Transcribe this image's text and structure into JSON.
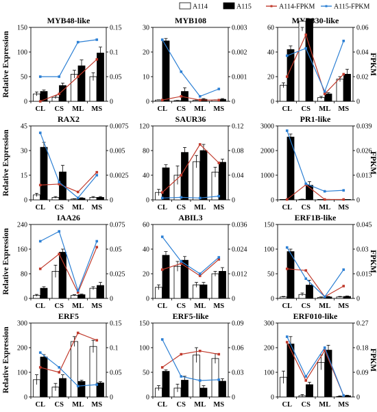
{
  "legend": {
    "items": [
      {
        "key": "a114",
        "label": "A114",
        "kind": "bar",
        "color": "#ffffff"
      },
      {
        "key": "a115",
        "label": "A115",
        "kind": "bar",
        "color": "#000000"
      },
      {
        "key": "a114_fpkm",
        "label": "A114-FPKM",
        "kind": "line",
        "color": "#c0392b"
      },
      {
        "key": "a115_fpkm",
        "label": "A115-FPKM",
        "kind": "line",
        "color": "#2b7fd4"
      }
    ]
  },
  "axis_titles": {
    "left": [
      "Relative Expression",
      "Relative Expression",
      "Relative Expression",
      "Relative Expression"
    ],
    "right": [
      "FPKM",
      "FPKM",
      "FPKM",
      "FPKM"
    ]
  },
  "chart_data": [
    {
      "type": "bar",
      "title": "MYB48-like",
      "categories": [
        "CL",
        "CS",
        "ML",
        "MS"
      ],
      "ylim": [
        0,
        150
      ],
      "yticks": [
        "0",
        "50",
        "100",
        "150"
      ],
      "y2lim": [
        0,
        0.15
      ],
      "y2ticks": [
        "0",
        "0.05",
        "0.1",
        "0.15"
      ],
      "series": [
        {
          "name": "A114",
          "values": [
            15,
            8,
            55,
            50
          ],
          "errors": [
            4,
            3,
            8,
            8
          ]
        },
        {
          "name": "A115",
          "values": [
            20,
            32,
            72,
            98
          ],
          "errors": [
            3,
            5,
            12,
            12
          ]
        },
        {
          "name": "A114-FPKM",
          "values": [
            0,
            0.015,
            0.05,
            0.085
          ]
        },
        {
          "name": "A115-FPKM",
          "values": [
            0.05,
            0.05,
            0.12,
            0.125
          ]
        }
      ]
    },
    {
      "type": "bar",
      "title": "MYB108",
      "categories": [
        "CL",
        "CS",
        "ML",
        "MS"
      ],
      "ylim": [
        0,
        30
      ],
      "yticks": [
        "0",
        "10",
        "20",
        "30"
      ],
      "y2lim": [
        0,
        0.003
      ],
      "y2ticks": [
        "0",
        "0.001",
        "0.002",
        "0.003"
      ],
      "series": [
        {
          "name": "A114",
          "values": [
            0.5,
            0.3,
            0.4,
            0.5
          ],
          "errors": [
            0.1,
            0.1,
            0.1,
            0.1
          ]
        },
        {
          "name": "A115",
          "values": [
            24.5,
            4,
            0.8,
            0.8
          ],
          "errors": [
            1,
            1.5,
            0.3,
            0.3
          ]
        },
        {
          "name": "A114-FPKM",
          "values": [
            5e-05,
            0.0002,
            5e-05,
            5e-05
          ]
        },
        {
          "name": "A115-FPKM",
          "values": [
            0.0025,
            0.0012,
            0.0002,
            0.0005
          ]
        }
      ]
    },
    {
      "type": "bar",
      "title": "MYB330-like",
      "categories": [
        "CL",
        "CS",
        "ML",
        "MS"
      ],
      "ylim": [
        0,
        60
      ],
      "yticks": [
        "0",
        "20",
        "40",
        "60"
      ],
      "y2lim": [
        0,
        0.06
      ],
      "y2ticks": [
        "0",
        "0.02",
        "0.04",
        "0.06"
      ],
      "series": [
        {
          "name": "A114",
          "values": [
            13,
            65,
            3,
            18
          ],
          "errors": [
            2,
            8,
            1,
            2
          ]
        },
        {
          "name": "A115",
          "values": [
            42,
            67,
            6,
            22
          ],
          "errors": [
            3,
            12,
            1,
            4
          ]
        },
        {
          "name": "A114-FPKM",
          "values": [
            0.02,
            0.054,
            0.006,
            0.022
          ]
        },
        {
          "name": "A115-FPKM",
          "values": [
            0.037,
            0.043,
            0.008,
            0.049
          ]
        }
      ]
    },
    {
      "type": "bar",
      "title": "RAX2",
      "categories": [
        "CL",
        "CS",
        "ML",
        "MS"
      ],
      "ylim": [
        0,
        45
      ],
      "yticks": [
        "0",
        "15",
        "30",
        "45"
      ],
      "y2lim": [
        0,
        0.0075
      ],
      "y2ticks": [
        "0",
        "0.0025",
        "0.005",
        "0.0075"
      ],
      "series": [
        {
          "name": "A114",
          "values": [
            3,
            1.5,
            0.5,
            1.5
          ],
          "errors": [
            1,
            0.5,
            0.2,
            0.5
          ]
        },
        {
          "name": "A115",
          "values": [
            32,
            17,
            1,
            1.5
          ],
          "errors": [
            3,
            4,
            0.3,
            0.5
          ]
        },
        {
          "name": "A114-FPKM",
          "values": [
            0.0015,
            0.0016,
            0.0008,
            0.0028
          ]
        },
        {
          "name": "A115-FPKM",
          "values": [
            0.0068,
            0.0018,
            0.0002,
            0.0025
          ]
        }
      ]
    },
    {
      "type": "bar",
      "title": "SAUR36",
      "categories": [
        "CL",
        "CS",
        "ML",
        "MS"
      ],
      "ylim": [
        0,
        120
      ],
      "yticks": [
        "0",
        "40",
        "80",
        "120"
      ],
      "y2lim": [
        0,
        0.12
      ],
      "y2ticks": [
        "0",
        "0.04",
        "0.08",
        "0.12"
      ],
      "series": [
        {
          "name": "A114",
          "values": [
            12,
            40,
            62,
            45
          ],
          "errors": [
            5,
            15,
            10,
            8
          ]
        },
        {
          "name": "A115",
          "values": [
            52,
            77,
            80,
            61
          ],
          "errors": [
            5,
            8,
            10,
            5
          ]
        },
        {
          "name": "A114-FPKM",
          "values": [
            0.012,
            0.04,
            0.09,
            0.06
          ]
        },
        {
          "name": "A115-FPKM",
          "values": [
            0.003,
            0.004,
            0.003,
            0.006
          ]
        }
      ]
    },
    {
      "type": "bar",
      "title": "PR1-like",
      "categories": [
        "CL",
        "CS",
        "ML",
        "MS"
      ],
      "ylim": [
        0,
        3000
      ],
      "yticks": [
        "0",
        "1000",
        "2000",
        "3000"
      ],
      "y2lim": [
        0,
        0.039
      ],
      "y2ticks": [
        "0",
        "0.013",
        "0.026",
        "0.039"
      ],
      "series": [
        {
          "name": "A114",
          "values": [
            10,
            20,
            5,
            5
          ],
          "errors": [
            5,
            10,
            2,
            2
          ]
        },
        {
          "name": "A115",
          "values": [
            2550,
            590,
            15,
            10
          ],
          "errors": [
            120,
            150,
            5,
            5
          ]
        },
        {
          "name": "A114-FPKM",
          "values": [
            0.0002,
            0.008,
            0.0002,
            0.0002
          ]
        },
        {
          "name": "A115-FPKM",
          "values": [
            0.0365,
            0.0085,
            0.0045,
            0.005
          ]
        }
      ]
    },
    {
      "type": "bar",
      "title": "IAA26",
      "categories": [
        "CL",
        "CS",
        "ML",
        "MS"
      ],
      "ylim": [
        0,
        240
      ],
      "yticks": [
        "0",
        "80",
        "160",
        "240"
      ],
      "y2lim": [
        0,
        0.075
      ],
      "y2ticks": [
        "0",
        "0.025",
        "0.05",
        "0.075"
      ],
      "series": [
        {
          "name": "A114",
          "values": [
            10,
            88,
            10,
            33
          ],
          "errors": [
            3,
            20,
            2,
            5
          ]
        },
        {
          "name": "A115",
          "values": [
            33,
            150,
            12,
            42
          ],
          "errors": [
            5,
            10,
            2,
            10
          ]
        },
        {
          "name": "A114-FPKM",
          "values": [
            0.03,
            0.045,
            0.006,
            0.052
          ]
        },
        {
          "name": "A115-FPKM",
          "values": [
            0.058,
            0.068,
            0.008,
            0.058
          ]
        }
      ]
    },
    {
      "type": "bar",
      "title": "ABIL3",
      "categories": [
        "CL",
        "CS",
        "ML",
        "MS"
      ],
      "ylim": [
        0,
        60
      ],
      "yticks": [
        "0",
        "20",
        "40",
        "60"
      ],
      "y2lim": [
        0,
        0.036
      ],
      "y2ticks": [
        "0",
        "0.012",
        "0.024",
        "0.036"
      ],
      "series": [
        {
          "name": "A114",
          "values": [
            9,
            26,
            11,
            20
          ],
          "errors": [
            2,
            4,
            2,
            2
          ]
        },
        {
          "name": "A115",
          "values": [
            35,
            31,
            11,
            22
          ],
          "errors": [
            3,
            3,
            2,
            3
          ]
        },
        {
          "name": "A114-FPKM",
          "values": [
            0.014,
            0.017,
            0.011,
            0.019
          ]
        },
        {
          "name": "A115-FPKM",
          "values": [
            0.03,
            0.018,
            0.012,
            0.02
          ]
        }
      ]
    },
    {
      "type": "bar",
      "title": "ERF1B-like",
      "categories": [
        "CL",
        "CS",
        "ML",
        "MS"
      ],
      "ylim": [
        0,
        150
      ],
      "yticks": [
        "0",
        "50",
        "100",
        "150"
      ],
      "y2lim": [
        0,
        0.045
      ],
      "y2ticks": [
        "0",
        "0.015",
        "0.03",
        "0.045"
      ],
      "series": [
        {
          "name": "A114",
          "values": [
            3,
            8,
            2,
            3
          ],
          "errors": [
            1,
            3,
            1,
            1
          ]
        },
        {
          "name": "A115",
          "values": [
            95,
            27,
            3,
            4
          ],
          "errors": [
            5,
            10,
            1,
            1
          ]
        },
        {
          "name": "A114-FPKM",
          "values": [
            0.018,
            0.017,
            0.001,
            0.0075
          ]
        },
        {
          "name": "A115-FPKM",
          "values": [
            0.031,
            0.012,
            0.001,
            0.0175
          ]
        }
      ]
    },
    {
      "type": "bar",
      "title": "ERF5",
      "categories": [
        "CL",
        "CS",
        "ML",
        "MS"
      ],
      "ylim": [
        0,
        300
      ],
      "yticks": [
        "0",
        "100",
        "200",
        "300"
      ],
      "y2lim": [
        0,
        0.15
      ],
      "y2ticks": [
        "0",
        "0.05",
        "0.1",
        "0.15"
      ],
      "series": [
        {
          "name": "A114",
          "values": [
            70,
            40,
            225,
            205
          ],
          "errors": [
            20,
            15,
            20,
            25
          ]
        },
        {
          "name": "A115",
          "values": [
            162,
            75,
            63,
            57
          ],
          "errors": [
            10,
            15,
            5,
            5
          ]
        },
        {
          "name": "A114-FPKM",
          "values": [
            0.06,
            0.05,
            0.13,
            0.115
          ]
        },
        {
          "name": "A115-FPKM",
          "values": [
            0.09,
            0.06,
            0.022,
            0.025
          ]
        }
      ]
    },
    {
      "type": "bar",
      "title": "ERF5-like",
      "categories": [
        "CL",
        "CS",
        "ML",
        "MS"
      ],
      "ylim": [
        0,
        150
      ],
      "yticks": [
        "0",
        "50",
        "100",
        "150"
      ],
      "y2lim": [
        0,
        0.09
      ],
      "y2ticks": [
        "0",
        "0.03",
        "0.06",
        "0.09"
      ],
      "series": [
        {
          "name": "A114",
          "values": [
            18,
            18,
            85,
            78
          ],
          "errors": [
            5,
            8,
            15,
            10
          ]
        },
        {
          "name": "A115",
          "values": [
            52,
            34,
            18,
            32
          ],
          "errors": [
            3,
            8,
            5,
            5
          ]
        },
        {
          "name": "A114-FPKM",
          "values": [
            0.036,
            0.052,
            0.056,
            0.052
          ]
        },
        {
          "name": "A115-FPKM",
          "values": [
            0.07,
            0.025,
            0.02,
            0.021
          ]
        }
      ]
    },
    {
      "type": "bar",
      "title": "ERF010-like",
      "categories": [
        "CL",
        "CS",
        "ML",
        "MS"
      ],
      "ylim": [
        0,
        300
      ],
      "yticks": [
        "0",
        "100",
        "200",
        "300"
      ],
      "y2lim": [
        0,
        0.27
      ],
      "y2ticks": [
        "0",
        "0.09",
        "0.18",
        "0.27"
      ],
      "series": [
        {
          "name": "A114",
          "values": [
            80,
            5,
            140,
            2
          ],
          "errors": [
            25,
            5,
            30,
            2
          ]
        },
        {
          "name": "A115",
          "values": [
            215,
            50,
            190,
            5
          ],
          "errors": [
            30,
            10,
            20,
            2
          ]
        },
        {
          "name": "A114-FPKM",
          "values": [
            0.2,
            0.06,
            0.17,
            0.005
          ]
        },
        {
          "name": "A115-FPKM",
          "values": [
            0.22,
            0.075,
            0.18,
            0.005
          ]
        }
      ]
    }
  ]
}
